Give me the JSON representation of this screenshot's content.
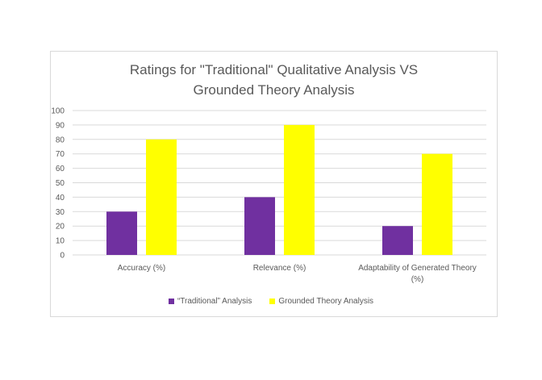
{
  "chart_data": {
    "type": "bar",
    "title_lines": [
      "Ratings  for \"Traditional\" Qualitative Analysis VS",
      "Grounded Theory Analysis"
    ],
    "categories": [
      "Accuracy (%)",
      "Relevance (%)",
      "Adaptability of Generated Theory (%)"
    ],
    "category_label_lines": [
      [
        "Accuracy (%)"
      ],
      [
        "Relevance (%)"
      ],
      [
        "Adaptability of Generated Theory",
        "(%)"
      ]
    ],
    "series": [
      {
        "name": "“Traditional” Analysis",
        "color": "#7030a0",
        "values": [
          30,
          40,
          20
        ]
      },
      {
        "name": "Grounded Theory Analysis",
        "color": "#ffff00",
        "values": [
          80,
          90,
          70
        ]
      }
    ],
    "yticks": [
      "0",
      "10",
      "20",
      "30",
      "40",
      "50",
      "60",
      "70",
      "80",
      "90",
      "100"
    ],
    "ylim": [
      0,
      100
    ],
    "xlabel": "",
    "ylabel": "",
    "grid": true,
    "legend_position": "bottom"
  }
}
